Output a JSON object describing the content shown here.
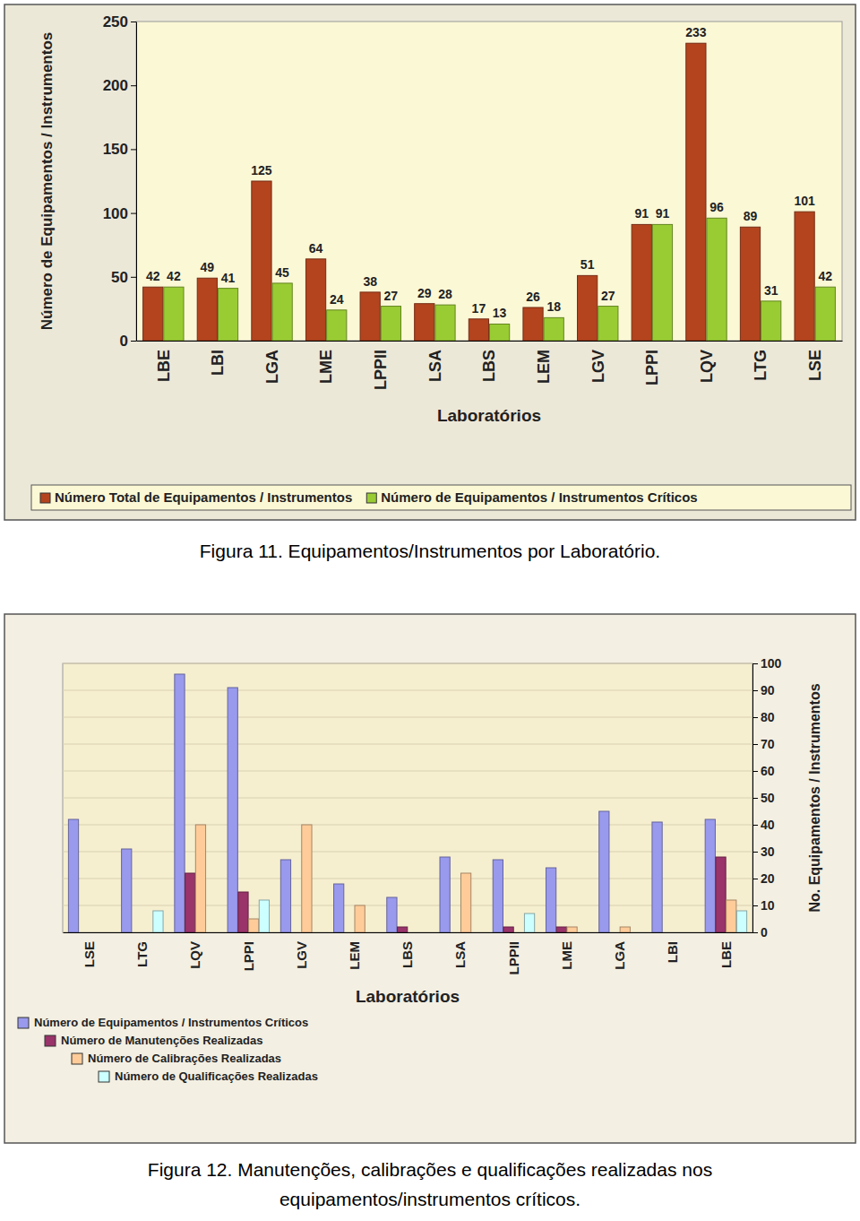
{
  "chart_data": [
    {
      "type": "bar",
      "title": "Figura 11. Equipamentos/Instrumentos por Laboratório.",
      "x_label": "Laboratórios",
      "y_label": "Número de Equipamentos / Instrumentos",
      "categories": [
        "LBE",
        "LBI",
        "LGA",
        "LME",
        "LPPII",
        "LSA",
        "LBS",
        "LEM",
        "LGV",
        "LPPI",
        "LQV",
        "LTG",
        "LSE"
      ],
      "series": [
        {
          "name": "Número Total de Equipamentos / Instrumentos",
          "color": "#b3441e",
          "values": [
            42,
            49,
            125,
            64,
            38,
            29,
            17,
            26,
            51,
            91,
            233,
            89,
            101
          ]
        },
        {
          "name": "Número de Equipamentos / Instrumentos Críticos",
          "color": "#99cc33",
          "values": [
            42,
            41,
            45,
            24,
            27,
            28,
            13,
            18,
            27,
            91,
            96,
            31,
            42
          ]
        }
      ],
      "ylim": [
        0,
        250
      ],
      "yticks": [
        0,
        50,
        100,
        150,
        200,
        250
      ],
      "grid": false,
      "data_labels": true,
      "legend": "bottom"
    },
    {
      "type": "bar",
      "title": "Figura 12. Manutenções, calibrações e qualificações realizadas nos equipamentos/instrumentos críticos.",
      "x_label": "Laboratórios",
      "y_label": "No. Equipamentos / Instrumentos",
      "categories": [
        "LSE",
        "LTG",
        "LQV",
        "LPPI",
        "LGV",
        "LEM",
        "LBS",
        "LSA",
        "LPPII",
        "LME",
        "LGA",
        "LBI",
        "LBE"
      ],
      "series": [
        {
          "name": "Número de Equipamentos / Instrumentos Críticos",
          "color": "#9999ee",
          "values": [
            42,
            31,
            96,
            91,
            27,
            18,
            13,
            28,
            27,
            24,
            45,
            41,
            42
          ]
        },
        {
          "name": "Número de Manutenções Realizadas",
          "color": "#99336a",
          "values": [
            0,
            0,
            22,
            15,
            0,
            0,
            2,
            0,
            2,
            2,
            0,
            0,
            28
          ]
        },
        {
          "name": "Número de Calibrações Realizadas",
          "color": "#ffcc99",
          "values": [
            0,
            0,
            40,
            5,
            40,
            10,
            0,
            22,
            0,
            2,
            2,
            0,
            12
          ]
        },
        {
          "name": "Número de Qualificações Realizadas",
          "color": "#ccffff",
          "values": [
            0,
            8,
            0,
            12,
            0,
            0,
            0,
            0,
            7,
            0,
            0,
            0,
            8
          ]
        }
      ],
      "ylim": [
        0,
        100
      ],
      "yticks": [
        0,
        10,
        20,
        30,
        40,
        50,
        60,
        70,
        80,
        90,
        100
      ],
      "grid": true,
      "data_labels": false,
      "legend": "bottom-left"
    }
  ]
}
